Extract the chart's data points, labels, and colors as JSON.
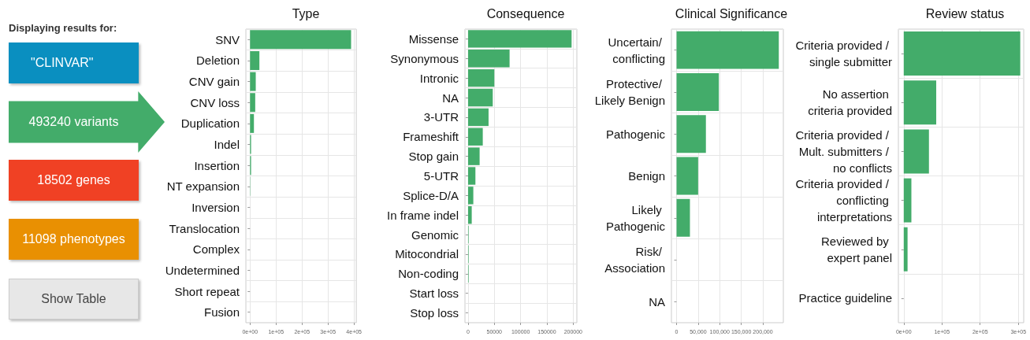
{
  "chart_data": [
    {
      "type": "other",
      "title": "Displaying results for:",
      "annotations": [
        "\"CLINVAR\"",
        "493240 variants",
        "18502 genes",
        "11098 phenotypes",
        "Show Table"
      ]
    },
    {
      "type": "bar",
      "orientation": "horizontal",
      "title": "Type",
      "grid": true,
      "color": "#43ac6a",
      "categories": [
        "SNV",
        "Deletion",
        "CNV gain",
        "CNV loss",
        "Duplication",
        "Indel",
        "Insertion",
        "NT expansion",
        "Inversion",
        "Translocation",
        "Complex",
        "Undetermined",
        "Short repeat",
        "Fusion"
      ],
      "values": [
        389000,
        36000,
        22000,
        20000,
        15000,
        4000,
        4000,
        1000,
        0,
        0,
        0,
        0,
        0,
        0
      ],
      "xlim": [
        -16000,
        409000
      ],
      "xticks": [
        {
          "value": 0,
          "label": "0e+00"
        },
        {
          "value": 100000,
          "label": "1e+05"
        },
        {
          "value": 200000,
          "label": "2e+05"
        },
        {
          "value": 300000,
          "label": "3e+05"
        },
        {
          "value": 400000,
          "label": "4e+05"
        }
      ]
    },
    {
      "type": "bar",
      "orientation": "horizontal",
      "title": "Consequence",
      "grid": true,
      "color": "#43ac6a",
      "categories": [
        "Missense",
        "Synonymous",
        "Intronic",
        "NA",
        "3-UTR",
        "Frameshift",
        "Stop gain",
        "5-UTR",
        "Splice-D/A",
        "In frame indel",
        "Genomic",
        "Mitocondrial",
        "Non-coding",
        "Start loss",
        "Stop loss"
      ],
      "values": [
        197000,
        79000,
        50000,
        47000,
        39000,
        28000,
        22000,
        14000,
        10000,
        7000,
        1000,
        1000,
        1000,
        0,
        0
      ],
      "xlim": [
        -5900,
        207000
      ],
      "xticks": [
        0,
        50000,
        100000,
        150000,
        200000
      ]
    },
    {
      "type": "bar",
      "orientation": "horizontal",
      "title": "Clinical Significance",
      "grid": true,
      "color": "#43ac6a",
      "categories": [
        "Uncertain/ conflicting",
        "Protective/ Likely Benign",
        "Pathogenic",
        "Benign",
        "Likely Pathogenic",
        "Risk/ Association",
        "NA"
      ],
      "values": [
        237000,
        98000,
        68000,
        50000,
        31000,
        0,
        0
      ],
      "xlim": [
        -11900,
        247500
      ],
      "xticks": [
        0,
        {
          "value": 50000,
          "label": "50,000"
        },
        {
          "value": 100000,
          "label": "100,000"
        },
        {
          "value": 150000,
          "label": "150,000"
        },
        {
          "value": 200000,
          "label": "200,000"
        }
      ]
    },
    {
      "type": "bar",
      "orientation": "horizontal",
      "title": "Review status",
      "grid": true,
      "color": "#43ac6a",
      "categories": [
        "Criteria provided / single submitter",
        "No assertion criteria provided",
        "Criteria provided / Mult. submitters / no conflicts",
        "Criteria provided / conflicting interpretations",
        "Reviewed by expert panel",
        "Practice guideline"
      ],
      "values": [
        305000,
        85000,
        66000,
        20000,
        10000,
        0
      ],
      "xlim": [
        -14000,
        314000
      ],
      "xticks": [
        {
          "value": 0,
          "label": "0e+00"
        },
        {
          "value": 100000,
          "label": "1e+05"
        },
        {
          "value": 200000,
          "label": "2e+05"
        },
        {
          "value": 300000,
          "label": "3e+05"
        }
      ]
    }
  ]
}
